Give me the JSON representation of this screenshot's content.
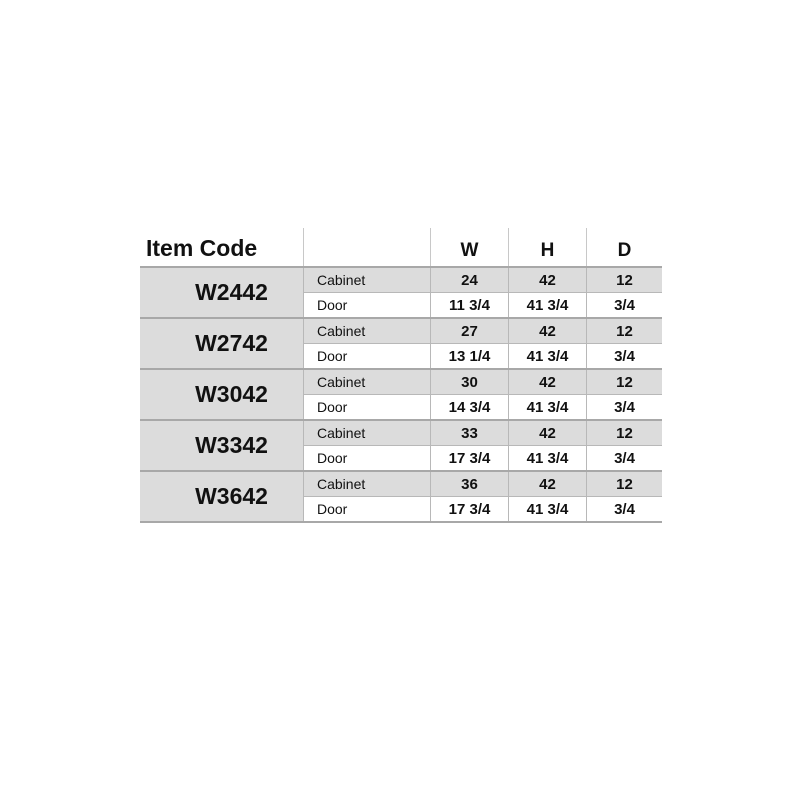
{
  "header": {
    "item_code": "Item Code",
    "label": "",
    "w": "W",
    "h": "H",
    "d": "D"
  },
  "items": [
    {
      "code": "W2442",
      "rows": [
        {
          "label": "Cabinet",
          "w": "24",
          "h": "42",
          "d": "12"
        },
        {
          "label": "Door",
          "w": "11 3/4",
          "h": "41 3/4",
          "d": "3/4"
        }
      ]
    },
    {
      "code": "W2742",
      "rows": [
        {
          "label": "Cabinet",
          "w": "27",
          "h": "42",
          "d": "12"
        },
        {
          "label": "Door",
          "w": "13 1/4",
          "h": "41 3/4",
          "d": "3/4"
        }
      ]
    },
    {
      "code": "W3042",
      "rows": [
        {
          "label": "Cabinet",
          "w": "30",
          "h": "42",
          "d": "12"
        },
        {
          "label": "Door",
          "w": "14 3/4",
          "h": "41 3/4",
          "d": "3/4"
        }
      ]
    },
    {
      "code": "W3342",
      "rows": [
        {
          "label": "Cabinet",
          "w": "33",
          "h": "42",
          "d": "12"
        },
        {
          "label": "Door",
          "w": "17 3/4",
          "h": "41 3/4",
          "d": "3/4"
        }
      ]
    },
    {
      "code": "W3642",
      "rows": [
        {
          "label": "Cabinet",
          "w": "36",
          "h": "42",
          "d": "12"
        },
        {
          "label": "Door",
          "w": "17 3/4",
          "h": "41 3/4",
          "d": "3/4"
        }
      ]
    }
  ],
  "colors": {
    "shade": "#dcdcdc",
    "rule": "#a8a8a8"
  }
}
